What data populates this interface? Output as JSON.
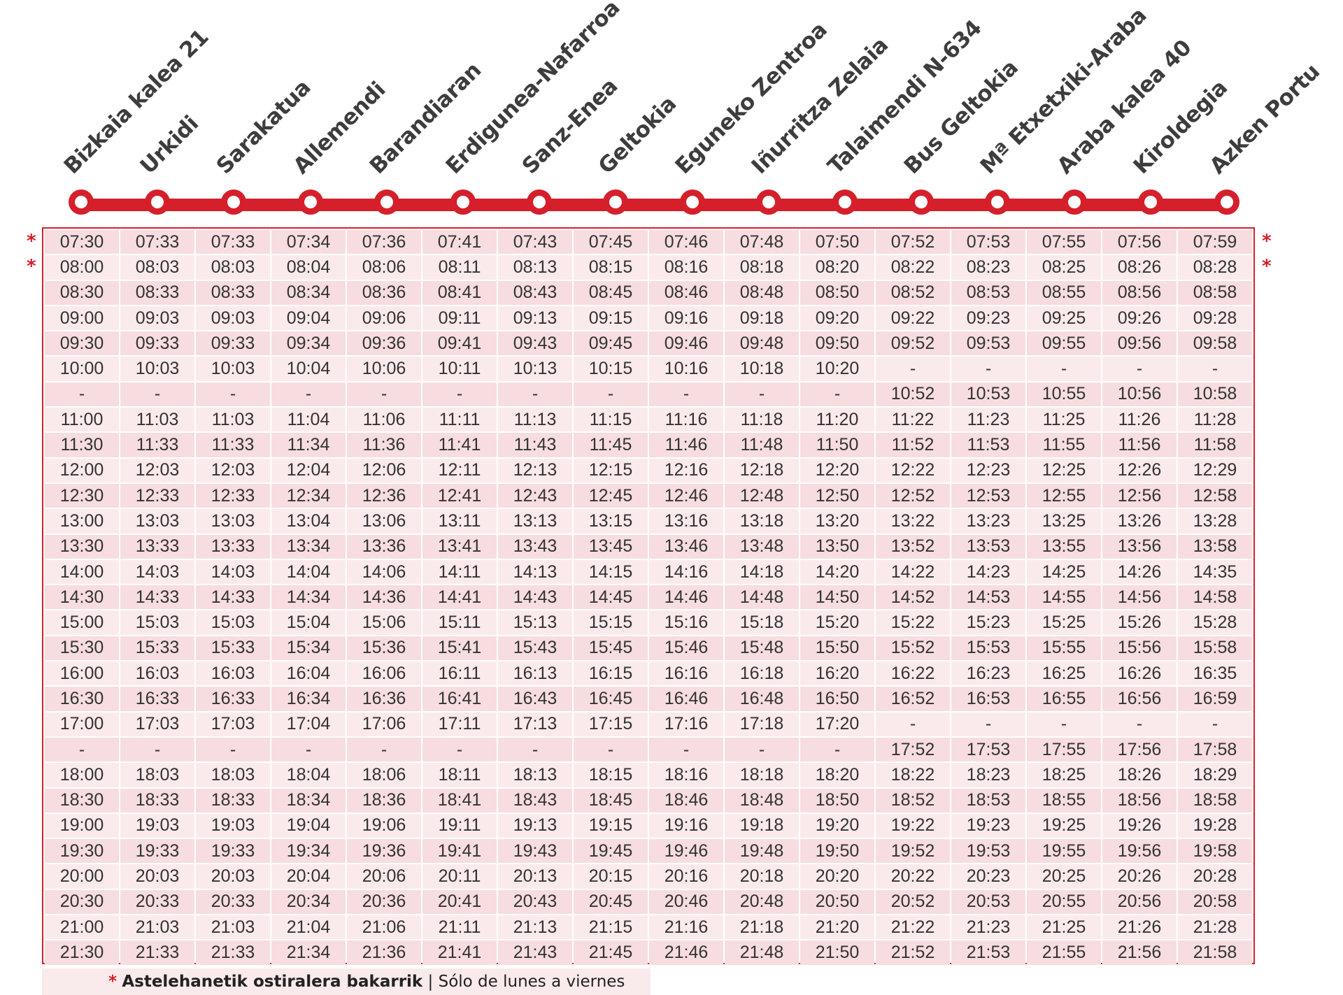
{
  "stops": [
    "Bizkaia kalea 21",
    "Urkidi",
    "Sarakatua",
    "Allemendi",
    "Barandiaran",
    "Erdigunea-Nafarroa",
    "Sanz-Enea",
    "Geltokia",
    "Eguneko Zentroa",
    "Iñurritza Zelaia",
    "Talaimendi N-634",
    "Bus Geltokia",
    "Mª Etxetxiki-Araba",
    "Araba kalea 40",
    "Kiroldegia",
    "Azken Portu"
  ],
  "colors": {
    "accent": "#d51f2b",
    "row_dark": "#f7dde0",
    "row_light": "#fbeaec"
  },
  "row_marker": "*",
  "marked_rows": [
    0,
    1
  ],
  "rows": [
    [
      "07:30",
      "07:33",
      "07:33",
      "07:34",
      "07:36",
      "07:41",
      "07:43",
      "07:45",
      "07:46",
      "07:48",
      "07:50",
      "07:52",
      "07:53",
      "07:55",
      "07:56",
      "07:59"
    ],
    [
      "08:00",
      "08:03",
      "08:03",
      "08:04",
      "08:06",
      "08:11",
      "08:13",
      "08:15",
      "08:16",
      "08:18",
      "08:20",
      "08:22",
      "08:23",
      "08:25",
      "08:26",
      "08:28"
    ],
    [
      "08:30",
      "08:33",
      "08:33",
      "08:34",
      "08:36",
      "08:41",
      "08:43",
      "08:45",
      "08:46",
      "08:48",
      "08:50",
      "08:52",
      "08:53",
      "08:55",
      "08:56",
      "08:58"
    ],
    [
      "09:00",
      "09:03",
      "09:03",
      "09:04",
      "09:06",
      "09:11",
      "09:13",
      "09:15",
      "09:16",
      "09:18",
      "09:20",
      "09:22",
      "09:23",
      "09:25",
      "09:26",
      "09:28"
    ],
    [
      "09:30",
      "09:33",
      "09:33",
      "09:34",
      "09:36",
      "09:41",
      "09:43",
      "09:45",
      "09:46",
      "09:48",
      "09:50",
      "09:52",
      "09:53",
      "09:55",
      "09:56",
      "09:58"
    ],
    [
      "10:00",
      "10:03",
      "10:03",
      "10:04",
      "10:06",
      "10:11",
      "10:13",
      "10:15",
      "10:16",
      "10:18",
      "10:20",
      "-",
      "-",
      "-",
      "-",
      "-"
    ],
    [
      "-",
      "-",
      "-",
      "-",
      "-",
      "-",
      "-",
      "-",
      "-",
      "-",
      "-",
      "10:52",
      "10:53",
      "10:55",
      "10:56",
      "10:58"
    ],
    [
      "11:00",
      "11:03",
      "11:03",
      "11:04",
      "11:06",
      "11:11",
      "11:13",
      "11:15",
      "11:16",
      "11:18",
      "11:20",
      "11:22",
      "11:23",
      "11:25",
      "11:26",
      "11:28"
    ],
    [
      "11:30",
      "11:33",
      "11:33",
      "11:34",
      "11:36",
      "11:41",
      "11:43",
      "11:45",
      "11:46",
      "11:48",
      "11:50",
      "11:52",
      "11:53",
      "11:55",
      "11:56",
      "11:58"
    ],
    [
      "12:00",
      "12:03",
      "12:03",
      "12:04",
      "12:06",
      "12:11",
      "12:13",
      "12:15",
      "12:16",
      "12:18",
      "12:20",
      "12:22",
      "12:23",
      "12:25",
      "12:26",
      "12:29"
    ],
    [
      "12:30",
      "12:33",
      "12:33",
      "12:34",
      "12:36",
      "12:41",
      "12:43",
      "12:45",
      "12:46",
      "12:48",
      "12:50",
      "12:52",
      "12:53",
      "12:55",
      "12:56",
      "12:58"
    ],
    [
      "13:00",
      "13:03",
      "13:03",
      "13:04",
      "13:06",
      "13:11",
      "13:13",
      "13:15",
      "13:16",
      "13:18",
      "13:20",
      "13:22",
      "13:23",
      "13:25",
      "13:26",
      "13:28"
    ],
    [
      "13:30",
      "13:33",
      "13:33",
      "13:34",
      "13:36",
      "13:41",
      "13:43",
      "13:45",
      "13:46",
      "13:48",
      "13:50",
      "13:52",
      "13:53",
      "13:55",
      "13:56",
      "13:58"
    ],
    [
      "14:00",
      "14:03",
      "14:03",
      "14:04",
      "14:06",
      "14:11",
      "14:13",
      "14:15",
      "14:16",
      "14:18",
      "14:20",
      "14:22",
      "14:23",
      "14:25",
      "14:26",
      "14:35"
    ],
    [
      "14:30",
      "14:33",
      "14:33",
      "14:34",
      "14:36",
      "14:41",
      "14:43",
      "14:45",
      "14:46",
      "14:48",
      "14:50",
      "14:52",
      "14:53",
      "14:55",
      "14:56",
      "14:58"
    ],
    [
      "15:00",
      "15:03",
      "15:03",
      "15:04",
      "15:06",
      "15:11",
      "15:13",
      "15:15",
      "15:16",
      "15:18",
      "15:20",
      "15:22",
      "15:23",
      "15:25",
      "15:26",
      "15:28"
    ],
    [
      "15:30",
      "15:33",
      "15:33",
      "15:34",
      "15:36",
      "15:41",
      "15:43",
      "15:45",
      "15:46",
      "15:48",
      "15:50",
      "15:52",
      "15:53",
      "15:55",
      "15:56",
      "15:58"
    ],
    [
      "16:00",
      "16:03",
      "16:03",
      "16:04",
      "16:06",
      "16:11",
      "16:13",
      "16:15",
      "16:16",
      "16:18",
      "16:20",
      "16:22",
      "16:23",
      "16:25",
      "16:26",
      "16:35"
    ],
    [
      "16:30",
      "16:33",
      "16:33",
      "16:34",
      "16:36",
      "16:41",
      "16:43",
      "16:45",
      "16:46",
      "16:48",
      "16:50",
      "16:52",
      "16:53",
      "16:55",
      "16:56",
      "16:59"
    ],
    [
      "17:00",
      "17:03",
      "17:03",
      "17:04",
      "17:06",
      "17:11",
      "17:13",
      "17:15",
      "17:16",
      "17:18",
      "17:20",
      "-",
      "-",
      "-",
      "-",
      "-"
    ],
    [
      "-",
      "-",
      "-",
      "-",
      "-",
      "-",
      "-",
      "-",
      "-",
      "-",
      "-",
      "17:52",
      "17:53",
      "17:55",
      "17:56",
      "17:58"
    ],
    [
      "18:00",
      "18:03",
      "18:03",
      "18:04",
      "18:06",
      "18:11",
      "18:13",
      "18:15",
      "18:16",
      "18:18",
      "18:20",
      "18:22",
      "18:23",
      "18:25",
      "18:26",
      "18:29"
    ],
    [
      "18:30",
      "18:33",
      "18:33",
      "18:34",
      "18:36",
      "18:41",
      "18:43",
      "18:45",
      "18:46",
      "18:48",
      "18:50",
      "18:52",
      "18:53",
      "18:55",
      "18:56",
      "18:58"
    ],
    [
      "19:00",
      "19:03",
      "19:03",
      "19:04",
      "19:06",
      "19:11",
      "19:13",
      "19:15",
      "19:16",
      "19:18",
      "19:20",
      "19:22",
      "19:23",
      "19:25",
      "19:26",
      "19:28"
    ],
    [
      "19:30",
      "19:33",
      "19:33",
      "19:34",
      "19:36",
      "19:41",
      "19:43",
      "19:45",
      "19:46",
      "19:48",
      "19:50",
      "19:52",
      "19:53",
      "19:55",
      "19:56",
      "19:58"
    ],
    [
      "20:00",
      "20:03",
      "20:03",
      "20:04",
      "20:06",
      "20:11",
      "20:13",
      "20:15",
      "20:16",
      "20:18",
      "20:20",
      "20:22",
      "20:23",
      "20:25",
      "20:26",
      "20:28"
    ],
    [
      "20:30",
      "20:33",
      "20:33",
      "20:34",
      "20:36",
      "20:41",
      "20:43",
      "20:45",
      "20:46",
      "20:48",
      "20:50",
      "20:52",
      "20:53",
      "20:55",
      "20:56",
      "20:58"
    ],
    [
      "21:00",
      "21:03",
      "21:03",
      "21:04",
      "21:06",
      "21:11",
      "21:13",
      "21:15",
      "21:16",
      "21:18",
      "21:20",
      "21:22",
      "21:23",
      "21:25",
      "21:26",
      "21:28"
    ],
    [
      "21:30",
      "21:33",
      "21:33",
      "21:34",
      "21:36",
      "21:41",
      "21:43",
      "21:45",
      "21:46",
      "21:48",
      "21:50",
      "21:52",
      "21:53",
      "21:55",
      "21:56",
      "21:58"
    ]
  ],
  "footnote": {
    "marker": "*",
    "bold_text": "Astelehanetik ostiralera bakarrik",
    "separator": "|",
    "text": "Sólo de lunes a viernes"
  }
}
